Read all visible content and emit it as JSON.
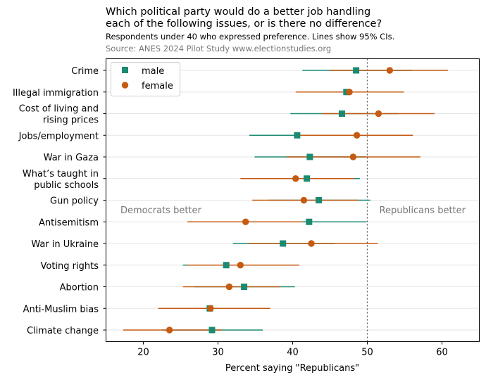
{
  "header": {
    "title_line1": "Which political party would do a better job handling",
    "title_line2": "each of the following issues, or is there no difference?",
    "subtitle": "Respondents under 40 who expressed preference. Lines show 95% CIs.",
    "source": "Source: ANES 2024 Pilot Study www.electionstudies.org"
  },
  "chart_data": {
    "type": "scatter",
    "orientation": "horizontal",
    "xlabel": "Percent saying \"Republicans\"",
    "xlim": [
      15,
      65
    ],
    "xticks": [
      20,
      30,
      40,
      50,
      60
    ],
    "reference_line": 50,
    "grid": "horizontal",
    "legend_position": "top-left",
    "annotations": {
      "left": "Democrats better",
      "right": "Republicans better"
    },
    "categories": [
      [
        "Crime"
      ],
      [
        "Illegal immigration"
      ],
      [
        "Cost of living and",
        "rising prices"
      ],
      [
        "Jobs/employment"
      ],
      [
        "War in Gaza"
      ],
      [
        "What’s taught in",
        "public schools"
      ],
      [
        "Gun policy"
      ],
      [
        "Antisemitism"
      ],
      [
        "War in Ukraine"
      ],
      [
        "Voting rights"
      ],
      [
        "Abortion"
      ],
      [
        "Anti-Muslim bias"
      ],
      [
        "Climate change"
      ]
    ],
    "series": [
      {
        "name": "male",
        "marker": "square",
        "color": "#1b8a72",
        "values": [
          48.5,
          47.2,
          46.6,
          40.6,
          42.3,
          41.9,
          43.5,
          42.2,
          38.7,
          31.1,
          33.5,
          28.9,
          29.2
        ],
        "ci_low": [
          41.3,
          40.5,
          39.7,
          34.2,
          34.9,
          36.9,
          36.8,
          34.2,
          32.0,
          25.3,
          26.8,
          22.0,
          22.5
        ],
        "ci_high": [
          56.0,
          54.6,
          54.2,
          47.3,
          49.8,
          49.0,
          50.4,
          49.9,
          45.6,
          37.2,
          40.3,
          35.6,
          36.0
        ]
      },
      {
        "name": "female",
        "marker": "circle",
        "color": "#c55a11",
        "values": [
          53.0,
          47.6,
          51.5,
          48.6,
          48.1,
          40.4,
          41.5,
          33.7,
          42.5,
          33.0,
          31.5,
          29.0,
          23.5
        ],
        "ci_low": [
          45.0,
          40.4,
          43.9,
          41.0,
          39.2,
          33.0,
          34.6,
          25.9,
          34.1,
          25.9,
          25.3,
          22.0,
          17.3
        ],
        "ci_high": [
          60.8,
          54.9,
          59.0,
          56.1,
          57.1,
          48.2,
          48.8,
          41.3,
          51.4,
          40.9,
          38.4,
          37.0,
          30.5
        ]
      }
    ]
  }
}
